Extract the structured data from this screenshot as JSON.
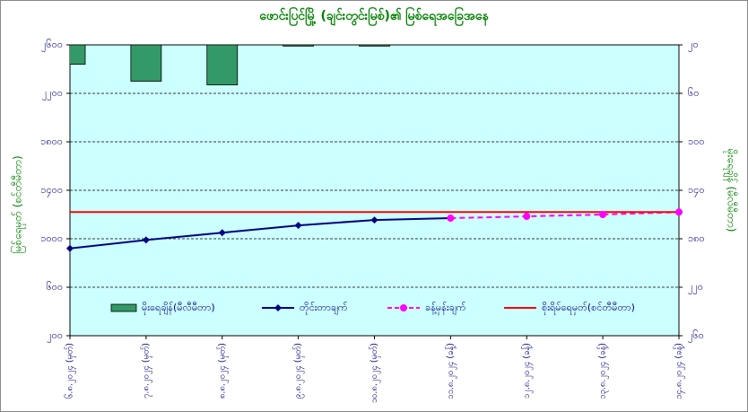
{
  "chart_data": {
    "type": "combo",
    "title": "ဖောင်းပြင်မြို့ (ချင်းတွင်းမြစ်)၏ မြစ်ရေအခြေအနေ",
    "y_label": "မြစ်ရေမှတ် (စင်တီမီတာ)",
    "y2_label": "မိုးရေချိန် (မီလီမီတာ)",
    "categories": [
      "၆.၈.၂၀၂၄ (မှတ်)",
      "၇.၈.၂၀၂၄ (မှတ်)",
      "၈.၈.၂၀၂၄ (မှတ်)",
      "၉.၈.၂၀၂၄ (မှတ်)",
      "၁၀.၈.၂၀၂၄ (မှတ်)",
      "၁၁.၈.၂၀၂၄ (ခန့်)",
      "၁၂.၈.၂၀၂၄ (ခန့်)",
      "၁၃.၈.၂၀၂၄ (ခန့်)",
      "၁၄.၈.၂၀၂၄ (ခန့်)"
    ],
    "series": [
      {
        "name": "မိုးရေချိန်(မီလီမီတာ)",
        "type": "bar",
        "axis": "y2",
        "color": "#339966",
        "values": [
          36,
          50,
          53,
          21,
          21,
          null,
          null,
          null,
          null
        ]
      },
      {
        "name": "တိုင်းတာချက်",
        "type": "line",
        "color": "#000080",
        "marker": "diamond",
        "values": [
          920,
          990,
          1050,
          1110,
          1155,
          1170,
          null,
          null,
          null
        ]
      },
      {
        "name": "ခန့်မှန်းချက်",
        "type": "line",
        "color": "#ff00ff",
        "marker": "circle",
        "dashed": true,
        "values": [
          null,
          null,
          null,
          null,
          null,
          1170,
          1185,
          1200,
          1220
        ]
      },
      {
        "name": "စိုးရိမ်ရေမှတ်(စင်တီမီတာ)",
        "type": "line",
        "color": "#ff0000",
        "values": [
          1220,
          1220,
          1220,
          1220,
          1220,
          1220,
          1220,
          1220,
          1220
        ]
      }
    ],
    "ylim": [
      200,
      2600
    ],
    "yticks": [
      {
        "value": 200,
        "label": "၂၀၀"
      },
      {
        "value": 600,
        "label": "၆၀၀"
      },
      {
        "value": 1000,
        "label": "၁၀၀၀"
      },
      {
        "value": 1400,
        "label": "၁၄၀၀"
      },
      {
        "value": 1800,
        "label": "၁၈၀၀"
      },
      {
        "value": 2200,
        "label": "၂၂၀၀"
      },
      {
        "value": 2600,
        "label": "၂၆၀၀"
      }
    ],
    "y2lim": [
      260,
      20
    ],
    "y2ticks": [
      {
        "value": 20,
        "label": "၂၀"
      },
      {
        "value": 60,
        "label": "၆၀"
      },
      {
        "value": 100,
        "label": "၁၀၀"
      },
      {
        "value": 140,
        "label": "၁၄၀"
      },
      {
        "value": 180,
        "label": "၁၈၀"
      },
      {
        "value": 220,
        "label": "၂၂၀"
      },
      {
        "value": 260,
        "label": "၂၆၀"
      }
    ],
    "grid": true,
    "legend": "bottom"
  }
}
